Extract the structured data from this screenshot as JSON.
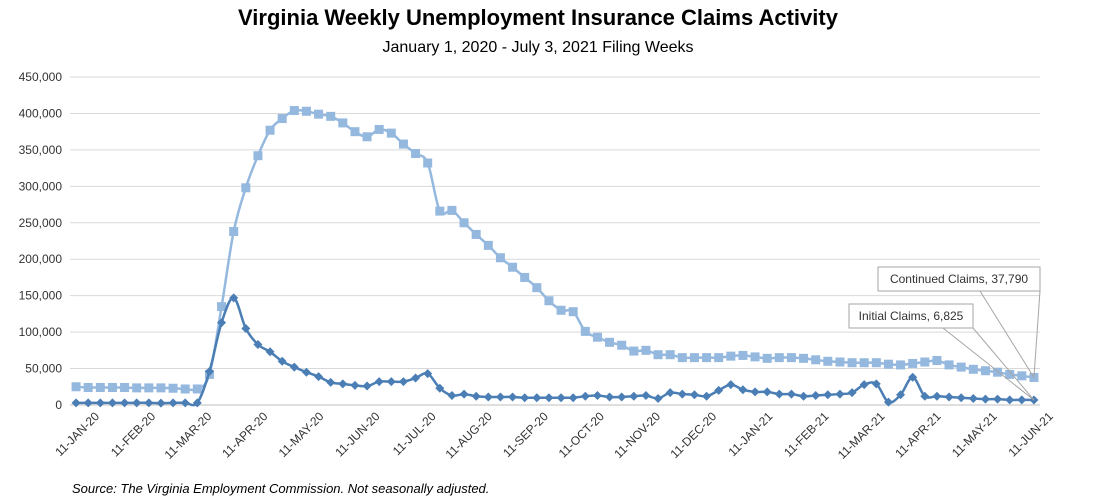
{
  "chart_data": {
    "type": "line",
    "title": "Virginia Weekly Unemployment Insurance Claims Activity",
    "subtitle": "January 1, 2020 - July 3, 2021 Filing Weeks",
    "source": "Source: The Virginia Employment Commission. Not seasonally adjusted.",
    "ylim": [
      0,
      450000
    ],
    "yticks": [
      "0",
      "50,000",
      "100,000",
      "150,000",
      "200,000",
      "250,000",
      "300,000",
      "350,000",
      "400,000",
      "450,000"
    ],
    "grid": true,
    "xtick_labels": [
      "11-JAN-20",
      "11-FEB-20",
      "11-MAR-20",
      "11-APR-20",
      "11-MAY-20",
      "11-JUN-20",
      "11-JUL-20",
      "11-AUG-20",
      "11-SEP-20",
      "11-OCT-20",
      "11-NOV-20",
      "11-DEC-20",
      "11-JAN-21",
      "11-FEB-21",
      "11-MAR-21",
      "11-APR-21",
      "11-MAY-21",
      "11-JUN-21"
    ],
    "colors": {
      "continued": "#95b8de",
      "initial": "#4a7eb5",
      "grid": "#d9d9d9",
      "axis": "#bfbfbf"
    },
    "series": [
      {
        "name": "Continued Claims",
        "marker": "square",
        "callout": "Continued Claims, 37,790",
        "values": [
          25000,
          24000,
          24000,
          24000,
          24000,
          23500,
          23500,
          23500,
          23000,
          22000,
          22000,
          42000,
          135000,
          238000,
          298000,
          342000,
          377000,
          393000,
          404000,
          403000,
          399000,
          396000,
          387000,
          375000,
          368000,
          378000,
          373000,
          358000,
          345000,
          332000,
          266000,
          267000,
          250000,
          234000,
          219000,
          202000,
          189000,
          175000,
          161000,
          143000,
          130000,
          128000,
          101000,
          93000,
          86000,
          82000,
          74000,
          75000,
          69000,
          69000,
          65000,
          65000,
          65000,
          65000,
          67000,
          68000,
          66000,
          64000,
          65000,
          65000,
          64000,
          62000,
          60000,
          59000,
          58000,
          58000,
          58000,
          56000,
          55000,
          57000,
          59000,
          61000,
          55000,
          52000,
          49000,
          47000,
          45000,
          42000,
          40000,
          37790
        ]
      },
      {
        "name": "Initial Claims",
        "marker": "diamond",
        "callout": "Initial Claims, 6,825",
        "values": [
          3000,
          3000,
          3000,
          3000,
          3000,
          3000,
          3000,
          2500,
          3000,
          3000,
          3000,
          46000,
          113000,
          147000,
          105000,
          83000,
          73000,
          60000,
          52000,
          45000,
          39000,
          31000,
          29000,
          27000,
          26000,
          32000,
          32000,
          32000,
          37000,
          43000,
          23000,
          13000,
          15000,
          12000,
          11000,
          11000,
          11000,
          10000,
          10000,
          10000,
          10000,
          10000,
          12000,
          13000,
          11000,
          11000,
          12000,
          13000,
          9000,
          17000,
          15000,
          14000,
          12000,
          20000,
          28000,
          21000,
          18000,
          18000,
          15000,
          15000,
          12000,
          13000,
          14000,
          15000,
          17000,
          28000,
          29000,
          4000,
          14000,
          38000,
          12000,
          12000,
          11000,
          10000,
          9000,
          8000,
          8000,
          7000,
          7000,
          6825
        ]
      }
    ]
  }
}
